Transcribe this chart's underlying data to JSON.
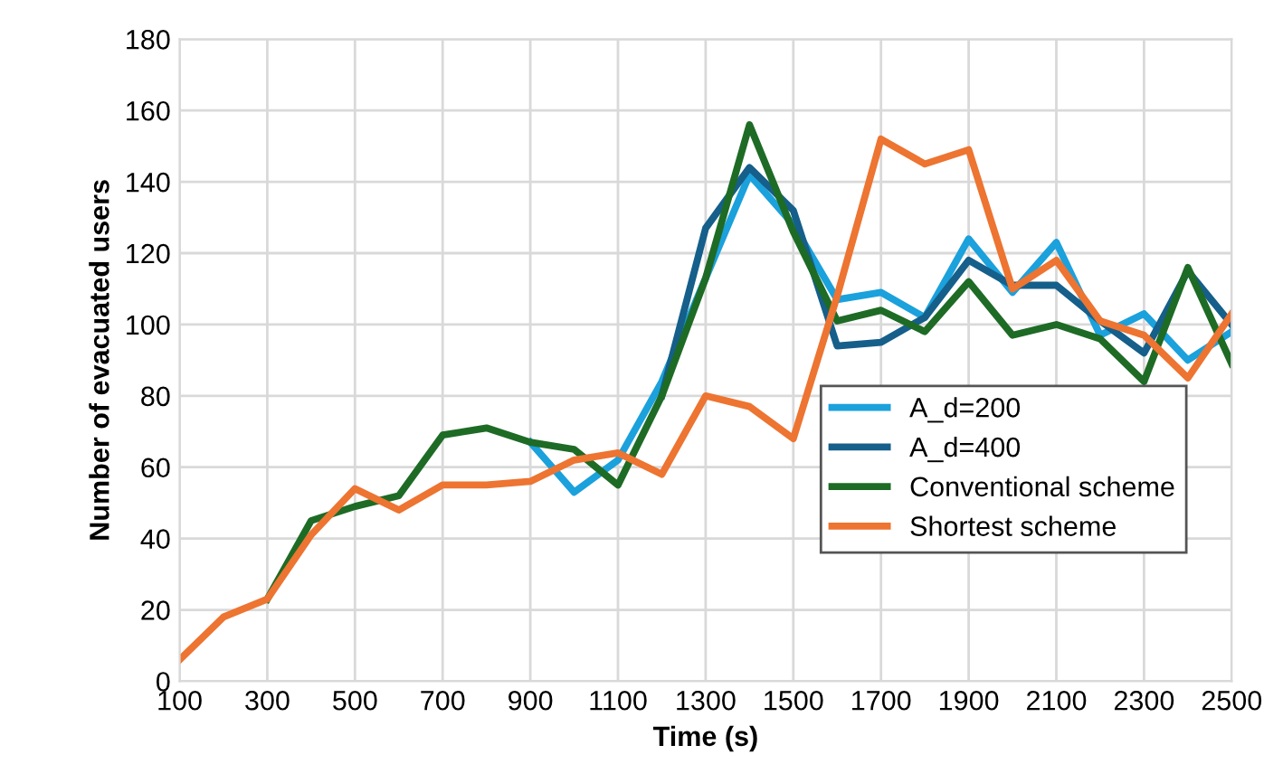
{
  "chart_data": {
    "type": "line",
    "xlabel": "Time (s)",
    "ylabel": "Number of evacuated users",
    "x": [
      100,
      200,
      300,
      400,
      500,
      600,
      700,
      800,
      900,
      1000,
      1100,
      1200,
      1300,
      1400,
      1500,
      1600,
      1700,
      1800,
      1900,
      2000,
      2100,
      2200,
      2300,
      2400,
      2500
    ],
    "series": [
      {
        "name": "A_d=200",
        "color": "#1ba1dc",
        "values": [
          null,
          null,
          null,
          null,
          null,
          null,
          null,
          null,
          67,
          53,
          62,
          84,
          113,
          142,
          128,
          107,
          109,
          102,
          124,
          109,
          123,
          97,
          103,
          90,
          98
        ]
      },
      {
        "name": "A_d=400",
        "color": "#155f8a",
        "values": [
          null,
          null,
          null,
          null,
          null,
          null,
          null,
          null,
          null,
          null,
          null,
          80,
          127,
          144,
          132,
          94,
          95,
          102,
          118,
          111,
          111,
          101,
          92,
          115,
          100
        ]
      },
      {
        "name": "Conventional scheme",
        "color": "#1e6b26",
        "values": [
          null,
          null,
          23,
          45,
          49,
          52,
          69,
          71,
          67,
          65,
          55,
          80,
          113,
          156,
          126,
          101,
          104,
          98,
          112,
          97,
          100,
          96,
          84,
          116,
          89
        ]
      },
      {
        "name": "Shortest scheme",
        "color": "#ed7431",
        "values": [
          6,
          18,
          23,
          41,
          54,
          48,
          55,
          55,
          56,
          62,
          64,
          58,
          80,
          77,
          68,
          108,
          152,
          145,
          149,
          110,
          118,
          101,
          97,
          85,
          103
        ]
      }
    ],
    "xlim": [
      100,
      2500
    ],
    "xticks": [
      100,
      300,
      500,
      700,
      900,
      1100,
      1300,
      1500,
      1700,
      1900,
      2100,
      2300,
      2500
    ],
    "ylim": [
      0,
      180
    ],
    "yticks": [
      0,
      20,
      40,
      60,
      80,
      100,
      120,
      140,
      160,
      180
    ],
    "grid": true,
    "legend": "right",
    "marker": "none",
    "line_style": "solid"
  }
}
